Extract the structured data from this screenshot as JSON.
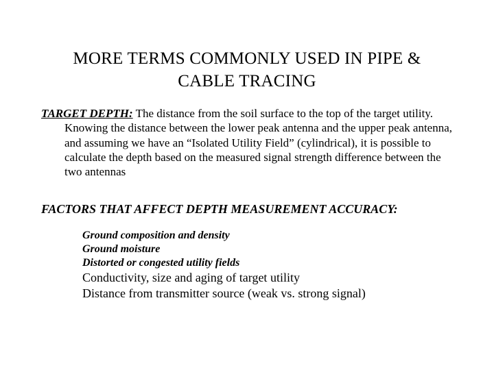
{
  "colors": {
    "background": "#ffffff",
    "text": "#000000"
  },
  "typography": {
    "family": "Times New Roman",
    "title_fontsize": 25,
    "body_fontsize": 17,
    "factors_heading_fontsize": 18,
    "factors_italic_fontsize": 16,
    "factors_plain_fontsize": 18
  },
  "title": {
    "line1": "MORE TERMS COMMONLY USED IN PIPE &",
    "line2": "CABLE TRACING"
  },
  "term": {
    "label": "TARGET DEPTH:",
    "text": " The distance from the soil surface to the top of the target utility. Knowing the distance between the lower peak antenna and the upper peak antenna, and assuming we have an “Isolated Utility Field” (cylindrical), it is possible to calculate the depth based on the measured signal strength difference between the two antennas"
  },
  "factors": {
    "heading": "FACTORS THAT AFFECT DEPTH MEASUREMENT ACCURACY:",
    "italic_items": [
      "Ground composition and density",
      "Ground moisture",
      "Distorted or congested utility fields"
    ],
    "plain_items": [
      "Conductivity, size and aging of target utility",
      "Distance from transmitter source (weak vs. strong signal)"
    ]
  }
}
